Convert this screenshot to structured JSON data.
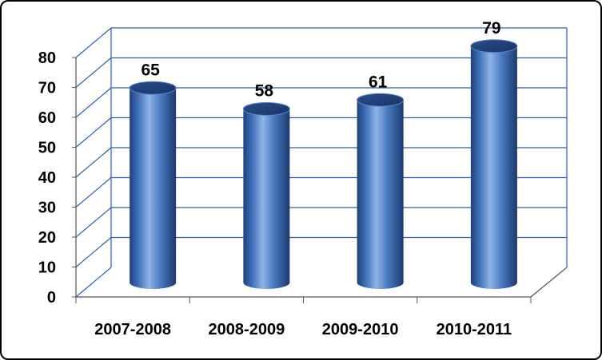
{
  "chart_data": {
    "type": "bar",
    "style": "3d-cylinder",
    "categories": [
      "2007-2008",
      "2008-2009",
      "2009-2010",
      "2010-2011"
    ],
    "values": [
      65,
      58,
      61,
      79
    ],
    "data_labels": [
      "65",
      "58",
      "61",
      "79"
    ],
    "title": "",
    "xlabel": "",
    "ylabel": "",
    "ylim": [
      0,
      80
    ],
    "yticks": [
      "0",
      "10",
      "20",
      "30",
      "40",
      "50",
      "60",
      "70",
      "80"
    ],
    "grid": true,
    "legend": "none",
    "colors": {
      "bar": "#3d6fb8",
      "bar_dark": "#1f3f78",
      "bar_light": "#8fb3e6",
      "grid": "#2f5fa8"
    }
  }
}
